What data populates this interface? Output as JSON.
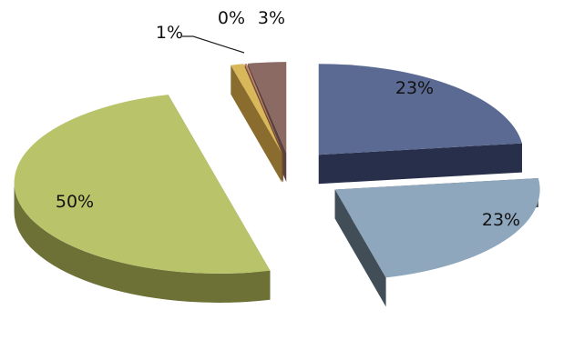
{
  "chart_data": {
    "type": "pie",
    "style": "3d-exploded",
    "legend": "none",
    "slices": [
      {
        "value": 23,
        "label": "23%",
        "color": "#5b6a93",
        "side": "#272f4a"
      },
      {
        "value": 23,
        "label": "23%",
        "color": "#8ea7bd",
        "side": "#414e58"
      },
      {
        "value": 50,
        "label": "50%",
        "color": "#b9c46a",
        "side": "#6d7136"
      },
      {
        "value": 1,
        "label": "1%",
        "color": "#d9b85c",
        "side": "#8a6d2e"
      },
      {
        "value": 0,
        "label": "0%",
        "color": "#c2876a",
        "side": "#6e4a3a"
      },
      {
        "value": 3,
        "label": "3%",
        "color": "#8a6a62",
        "side": "#5a413b"
      }
    ]
  }
}
